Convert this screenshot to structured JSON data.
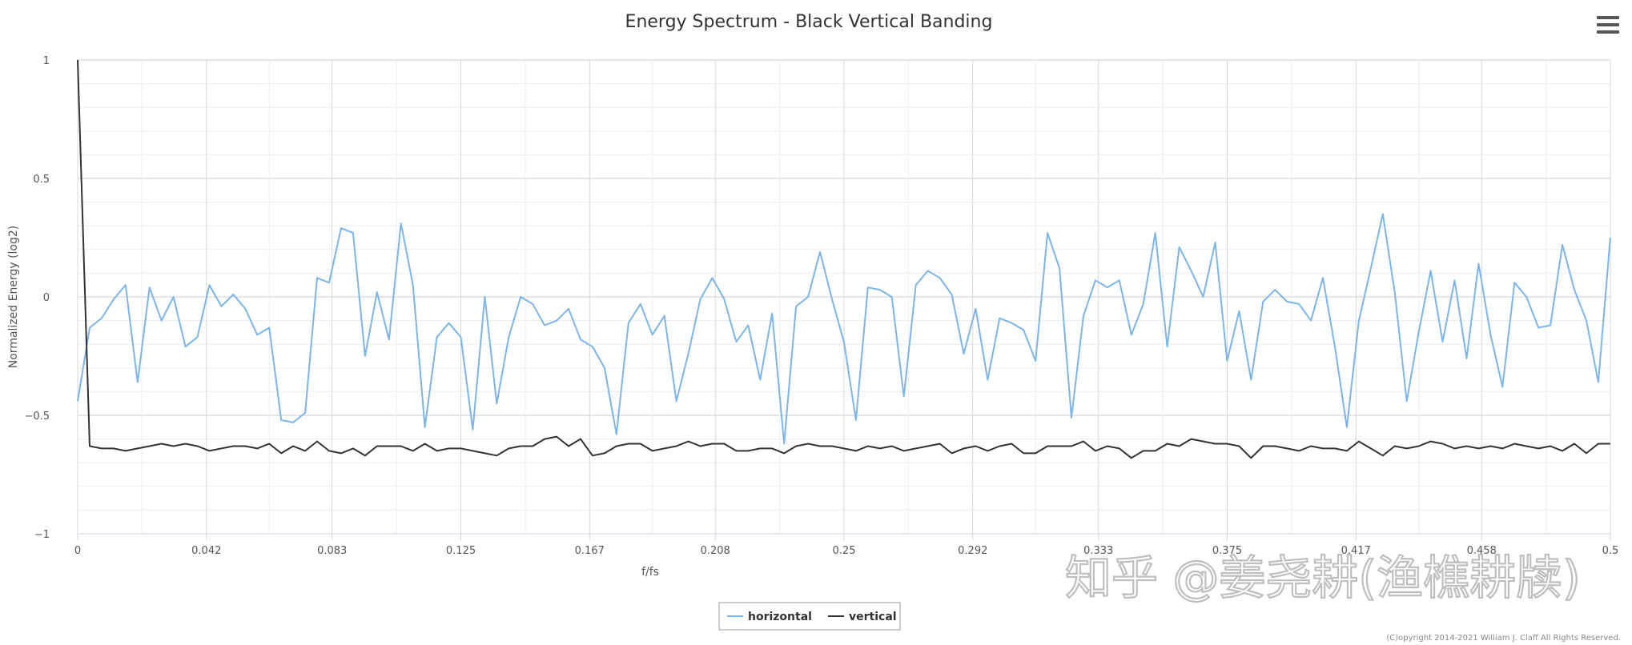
{
  "chart_data": {
    "type": "line",
    "title": "Energy Spectrum - Black Vertical Banding",
    "xlabel": "f/fs",
    "ylabel": "Normalized Energy (log2)",
    "xlim": [
      0,
      0.5
    ],
    "ylim": [
      -1,
      1
    ],
    "x_ticks": [
      0,
      0.042,
      0.083,
      0.125,
      0.167,
      0.208,
      0.25,
      0.292,
      0.333,
      0.375,
      0.417,
      0.458,
      0.5
    ],
    "x_tick_labels": [
      "0",
      "0.042",
      "0.083",
      "0.125",
      "0.167",
      "0.208",
      "0.25",
      "0.292",
      "0.333",
      "0.375",
      "0.417",
      "0.458",
      "0.5"
    ],
    "y_ticks": [
      -1,
      -0.5,
      0,
      0.5,
      1
    ],
    "y_tick_labels": [
      "−1",
      "−0.5",
      "0",
      "0.5",
      "1"
    ],
    "grid": true,
    "legend_position": "bottom-center",
    "x_step": 0.003906,
    "series": [
      {
        "name": "horizontal",
        "color": "#7cb5ec",
        "values": [
          -0.44,
          -0.13,
          -0.09,
          -0.01,
          0.05,
          -0.36,
          0.04,
          -0.1,
          0.0,
          -0.21,
          -0.17,
          0.05,
          -0.04,
          0.01,
          -0.05,
          -0.16,
          -0.13,
          -0.52,
          -0.53,
          -0.49,
          0.08,
          0.06,
          0.29,
          0.27,
          -0.25,
          0.02,
          -0.18,
          0.31,
          0.05,
          -0.55,
          -0.17,
          -0.11,
          -0.17,
          -0.56,
          0.0,
          -0.45,
          -0.17,
          0.0,
          -0.03,
          -0.12,
          -0.1,
          -0.05,
          -0.18,
          -0.21,
          -0.3,
          -0.58,
          -0.11,
          -0.03,
          -0.16,
          -0.08,
          -0.44,
          -0.24,
          -0.01,
          0.08,
          -0.01,
          -0.19,
          -0.12,
          -0.35,
          -0.07,
          -0.62,
          -0.04,
          0.0,
          0.19,
          -0.01,
          -0.19,
          -0.52,
          0.04,
          0.03,
          0.0,
          -0.42,
          0.05,
          0.11,
          0.08,
          0.01,
          -0.24,
          -0.05,
          -0.35,
          -0.09,
          -0.11,
          -0.14,
          -0.27,
          0.27,
          0.12,
          -0.51,
          -0.08,
          0.07,
          0.04,
          0.07,
          -0.16,
          -0.03,
          0.27,
          -0.21,
          0.21,
          0.11,
          0.0,
          0.23,
          -0.27,
          -0.06,
          -0.35,
          -0.02,
          0.03,
          -0.02,
          -0.03,
          -0.1,
          0.08,
          -0.21,
          -0.55,
          -0.1,
          0.12,
          0.35,
          0.02,
          -0.44,
          -0.15,
          0.11,
          -0.19,
          0.07,
          -0.26,
          0.14,
          -0.16,
          -0.38,
          0.06,
          0.0,
          -0.13,
          -0.12,
          0.22,
          0.03,
          -0.1,
          -0.36,
          0.25
        ]
      },
      {
        "name": "vertical",
        "color": "#333333",
        "values": [
          1.0,
          -0.63,
          -0.64,
          -0.64,
          -0.65,
          -0.64,
          -0.63,
          -0.62,
          -0.63,
          -0.62,
          -0.63,
          -0.65,
          -0.64,
          -0.63,
          -0.63,
          -0.64,
          -0.62,
          -0.66,
          -0.63,
          -0.65,
          -0.61,
          -0.65,
          -0.66,
          -0.64,
          -0.67,
          -0.63,
          -0.63,
          -0.63,
          -0.65,
          -0.62,
          -0.65,
          -0.64,
          -0.64,
          -0.65,
          -0.66,
          -0.67,
          -0.64,
          -0.63,
          -0.63,
          -0.6,
          -0.59,
          -0.63,
          -0.6,
          -0.67,
          -0.66,
          -0.63,
          -0.62,
          -0.62,
          -0.65,
          -0.64,
          -0.63,
          -0.61,
          -0.63,
          -0.62,
          -0.62,
          -0.65,
          -0.65,
          -0.64,
          -0.64,
          -0.66,
          -0.63,
          -0.62,
          -0.63,
          -0.63,
          -0.64,
          -0.65,
          -0.63,
          -0.64,
          -0.63,
          -0.65,
          -0.64,
          -0.63,
          -0.62,
          -0.66,
          -0.64,
          -0.63,
          -0.65,
          -0.63,
          -0.62,
          -0.66,
          -0.66,
          -0.63,
          -0.63,
          -0.63,
          -0.61,
          -0.65,
          -0.63,
          -0.64,
          -0.68,
          -0.65,
          -0.65,
          -0.62,
          -0.63,
          -0.6,
          -0.61,
          -0.62,
          -0.62,
          -0.63,
          -0.68,
          -0.63,
          -0.63,
          -0.64,
          -0.65,
          -0.63,
          -0.64,
          -0.64,
          -0.65,
          -0.61,
          -0.64,
          -0.67,
          -0.63,
          -0.64,
          -0.63,
          -0.61,
          -0.62,
          -0.64,
          -0.63,
          -0.64,
          -0.63,
          -0.64,
          -0.62,
          -0.63,
          -0.64,
          -0.63,
          -0.65,
          -0.62,
          -0.66,
          -0.62,
          -0.62
        ]
      }
    ]
  },
  "legend": {
    "items": [
      {
        "label": "horizontal",
        "color": "#7cb5ec"
      },
      {
        "label": "vertical",
        "color": "#333333"
      }
    ]
  },
  "copyright": "(C)opyright 2014-2021 William J. Claff All Rights Reserved.",
  "watermark": "知乎 @姜尧耕(渔樵耕牍)",
  "menu_icon": "hamburger-menu-icon"
}
